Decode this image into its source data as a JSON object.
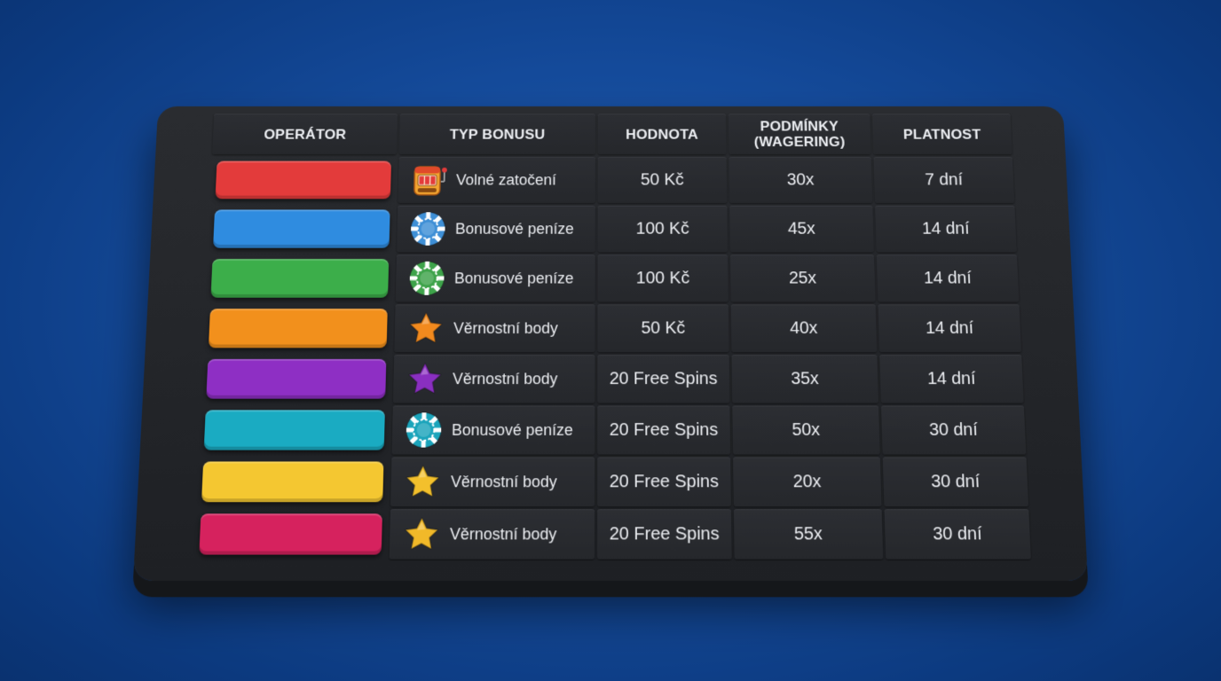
{
  "table": {
    "headers": {
      "operator": "OPERÁTOR",
      "type": "TYP BONUSU",
      "value": "HODNOTA",
      "conditions": "PODMÍNKY\n(WAGERING)",
      "validity": "PLATNOST"
    },
    "rows": [
      {
        "operator_color": "#e33b3b",
        "icon": "slot-machine-icon",
        "icon_color": "#f2a531",
        "type": "Volné zatočení",
        "value": "50 Kč",
        "wagering": "30x",
        "validity": "7 dní"
      },
      {
        "operator_color": "#2f8ce0",
        "icon": "poker-chip-icon",
        "icon_color": "#3e8fd6",
        "type": "Bonusové peníze",
        "value": "100 Kč",
        "wagering": "45x",
        "validity": "14 dní"
      },
      {
        "operator_color": "#3cae4a",
        "icon": "poker-chip-icon",
        "icon_color": "#3ea34a",
        "type": "Bonusové peníze",
        "value": "100 Kč",
        "wagering": "25x",
        "validity": "14 dní"
      },
      {
        "operator_color": "#f2901c",
        "icon": "star-icon",
        "icon_color": "#f28a1e",
        "type": "Věrnostní body",
        "value": "50 Kč",
        "wagering": "40x",
        "validity": "14 dní"
      },
      {
        "operator_color": "#8e2fc4",
        "icon": "star-icon",
        "icon_color": "#8a2fc0",
        "type": "Věrnostní body",
        "value": "20 Free Spins",
        "wagering": "35x",
        "validity": "14 dní"
      },
      {
        "operator_color": "#1aabc2",
        "icon": "poker-chip-icon",
        "icon_color": "#1ba4bb",
        "type": "Bonusové peníze",
        "value": "20 Free Spins",
        "wagering": "50x",
        "validity": "30 dní"
      },
      {
        "operator_color": "#f4c731",
        "icon": "star-icon",
        "icon_color": "#f3c02c",
        "type": "Věrnostní body",
        "value": "20 Free Spins",
        "wagering": "20x",
        "validity": "30 dní"
      },
      {
        "operator_color": "#d6225e",
        "icon": "star-icon",
        "icon_color": "#f1b929",
        "type": "Věrnostní body",
        "value": "20 Free Spins",
        "wagering": "55x",
        "validity": "30 dní"
      }
    ]
  }
}
